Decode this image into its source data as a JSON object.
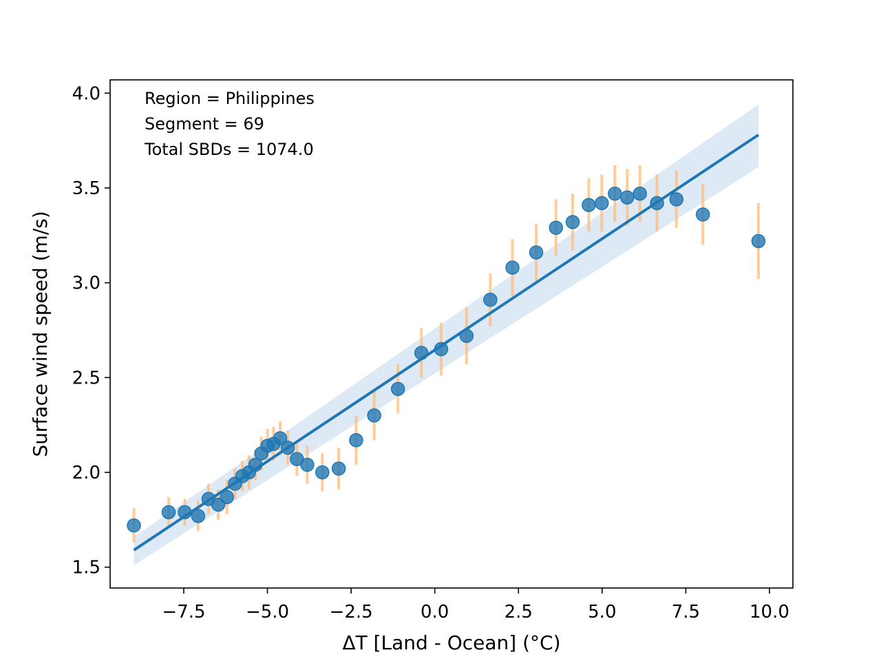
{
  "chart_data": {
    "type": "scatter",
    "xlabel": "ΔT [Land - Ocean] (°C)",
    "ylabel": "Surface wind speed (m/s)",
    "xlim": [
      -9.7,
      10.7
    ],
    "ylim": [
      1.39,
      4.07
    ],
    "xticks": [
      -7.5,
      -5.0,
      -2.5,
      0.0,
      2.5,
      5.0,
      7.5,
      10.0
    ],
    "xtick_labels": [
      "−7.5",
      "−5.0",
      "−2.5",
      "0.0",
      "2.5",
      "5.0",
      "7.5",
      "10.0"
    ],
    "yticks": [
      1.5,
      2.0,
      2.5,
      3.0,
      3.5,
      4.0
    ],
    "ytick_labels": [
      "1.5",
      "2.0",
      "2.5",
      "3.0",
      "3.5",
      "4.0"
    ],
    "annotations": [
      "Region = Philippines",
      "Segment = 69",
      "Total SBDs = 1074.0"
    ],
    "grid": false,
    "colors": {
      "points": "#1f77b4",
      "error_bars": "#ffbb78",
      "fit_line": "#1f77b4",
      "confidence_band": "#c6dbef"
    },
    "points": [
      {
        "x": -8.99,
        "y": 1.72,
        "err": 0.09
      },
      {
        "x": -7.95,
        "y": 1.79,
        "err": 0.08
      },
      {
        "x": -7.47,
        "y": 1.79,
        "err": 0.07
      },
      {
        "x": -7.07,
        "y": 1.77,
        "err": 0.08
      },
      {
        "x": -6.76,
        "y": 1.86,
        "err": 0.08
      },
      {
        "x": -6.47,
        "y": 1.83,
        "err": 0.08
      },
      {
        "x": -6.21,
        "y": 1.87,
        "err": 0.09
      },
      {
        "x": -5.97,
        "y": 1.94,
        "err": 0.08
      },
      {
        "x": -5.75,
        "y": 1.98,
        "err": 0.08
      },
      {
        "x": -5.55,
        "y": 2.0,
        "err": 0.09
      },
      {
        "x": -5.36,
        "y": 2.04,
        "err": 0.08
      },
      {
        "x": -5.18,
        "y": 2.1,
        "err": 0.09
      },
      {
        "x": -5.0,
        "y": 2.14,
        "err": 0.09
      },
      {
        "x": -4.82,
        "y": 2.15,
        "err": 0.09
      },
      {
        "x": -4.62,
        "y": 2.18,
        "err": 0.09
      },
      {
        "x": -4.39,
        "y": 2.13,
        "err": 0.09
      },
      {
        "x": -4.12,
        "y": 2.07,
        "err": 0.09
      },
      {
        "x": -3.81,
        "y": 2.04,
        "err": 0.1
      },
      {
        "x": -3.36,
        "y": 2.0,
        "err": 0.1
      },
      {
        "x": -2.87,
        "y": 2.02,
        "err": 0.11
      },
      {
        "x": -2.35,
        "y": 2.17,
        "err": 0.13
      },
      {
        "x": -1.81,
        "y": 2.3,
        "err": 0.13
      },
      {
        "x": -1.1,
        "y": 2.44,
        "err": 0.13
      },
      {
        "x": -0.4,
        "y": 2.63,
        "err": 0.13
      },
      {
        "x": 0.19,
        "y": 2.65,
        "err": 0.14
      },
      {
        "x": 0.95,
        "y": 2.72,
        "err": 0.15
      },
      {
        "x": 1.66,
        "y": 2.91,
        "err": 0.14
      },
      {
        "x": 2.32,
        "y": 3.08,
        "err": 0.15
      },
      {
        "x": 3.03,
        "y": 3.16,
        "err": 0.15
      },
      {
        "x": 3.62,
        "y": 3.29,
        "err": 0.15
      },
      {
        "x": 4.12,
        "y": 3.32,
        "err": 0.15
      },
      {
        "x": 4.6,
        "y": 3.41,
        "err": 0.14
      },
      {
        "x": 4.99,
        "y": 3.42,
        "err": 0.15
      },
      {
        "x": 5.38,
        "y": 3.47,
        "err": 0.15
      },
      {
        "x": 5.75,
        "y": 3.45,
        "err": 0.15
      },
      {
        "x": 6.13,
        "y": 3.47,
        "err": 0.15
      },
      {
        "x": 6.64,
        "y": 3.42,
        "err": 0.15
      },
      {
        "x": 7.22,
        "y": 3.44,
        "err": 0.15
      },
      {
        "x": 8.01,
        "y": 3.36,
        "err": 0.16
      },
      {
        "x": 9.67,
        "y": 3.22,
        "err": 0.2
      }
    ],
    "fit": {
      "x": [
        -8.99,
        9.67
      ],
      "y": [
        1.59,
        3.78
      ],
      "band_low": [
        1.51,
        3.61
      ],
      "band_high": [
        1.66,
        3.94
      ]
    }
  }
}
